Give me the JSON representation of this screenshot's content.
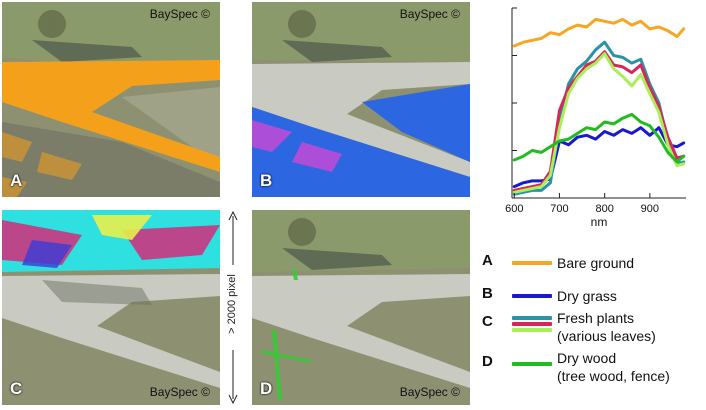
{
  "panels": [
    {
      "letter": "A",
      "watermark": "BaySpec ©",
      "overlay_color": "#f5a01a"
    },
    {
      "letter": "B",
      "watermark": "BaySpec ©",
      "overlay_color": "#2c66e0"
    },
    {
      "letter": "C",
      "watermark": "BaySpec ©",
      "overlay_color": "#2ee0e0"
    },
    {
      "letter": "D",
      "watermark": "BaySpec ©",
      "overlay_color": "#33cc33"
    }
  ],
  "scale_label": "> 2000 pixel",
  "chart_data": {
    "type": "line",
    "xlabel": "nm",
    "ylabel": "",
    "title": "",
    "xlim": [
      595,
      980
    ],
    "ylim": [
      0,
      100
    ],
    "xticks": [
      600,
      700,
      800,
      900
    ],
    "grid": false,
    "series": [
      {
        "id": "A",
        "color": "#f5a623",
        "width": 3,
        "x": [
          600,
          620,
          640,
          660,
          680,
          700,
          720,
          740,
          760,
          780,
          800,
          820,
          840,
          860,
          880,
          900,
          920,
          940,
          960,
          975
        ],
        "y": [
          80,
          82,
          83,
          84,
          87,
          86,
          89,
          91,
          90,
          94,
          93,
          92,
          94,
          91,
          93,
          89,
          90,
          88,
          85,
          89
        ]
      },
      {
        "id": "B",
        "color": "#1a1acc",
        "width": 3,
        "x": [
          600,
          620,
          640,
          660,
          680,
          700,
          720,
          740,
          760,
          780,
          800,
          820,
          840,
          860,
          880,
          900,
          920,
          940,
          960,
          975
        ],
        "y": [
          6,
          8,
          9,
          9,
          10,
          30,
          28,
          32,
          33,
          31,
          35,
          33,
          36,
          34,
          37,
          33,
          37,
          28,
          27,
          29
        ]
      },
      {
        "id": "C1",
        "color": "#2a93a8",
        "width": 3,
        "x": [
          600,
          620,
          640,
          660,
          680,
          700,
          720,
          740,
          760,
          780,
          800,
          820,
          840,
          860,
          880,
          900,
          920,
          940,
          960,
          975
        ],
        "y": [
          2,
          3,
          4,
          4,
          8,
          40,
          60,
          68,
          72,
          78,
          82,
          75,
          74,
          71,
          73,
          60,
          50,
          30,
          18,
          19
        ]
      },
      {
        "id": "C2",
        "color": "#d6275a",
        "width": 3,
        "x": [
          600,
          620,
          640,
          660,
          680,
          700,
          720,
          740,
          760,
          780,
          800,
          820,
          840,
          860,
          880,
          900,
          920,
          940,
          960,
          975
        ],
        "y": [
          4,
          5,
          6,
          7,
          14,
          46,
          58,
          64,
          70,
          72,
          77,
          70,
          69,
          66,
          70,
          58,
          48,
          32,
          21,
          22
        ]
      },
      {
        "id": "C3",
        "color": "#a8ef58",
        "width": 3,
        "x": [
          600,
          620,
          640,
          660,
          680,
          700,
          720,
          740,
          760,
          780,
          800,
          820,
          840,
          860,
          880,
          900,
          920,
          940,
          960,
          975
        ],
        "y": [
          3,
          4,
          5,
          6,
          12,
          37,
          55,
          63,
          68,
          71,
          76,
          68,
          64,
          59,
          65,
          55,
          45,
          28,
          17,
          18
        ]
      },
      {
        "id": "D",
        "color": "#22bb22",
        "width": 3,
        "x": [
          600,
          620,
          640,
          660,
          680,
          700,
          720,
          740,
          760,
          780,
          800,
          820,
          840,
          860,
          880,
          900,
          920,
          940,
          960,
          975
        ],
        "y": [
          20,
          22,
          25,
          24,
          27,
          30,
          31,
          34,
          37,
          36,
          40,
          39,
          42,
          44,
          40,
          38,
          32,
          24,
          19,
          22
        ]
      }
    ]
  },
  "legend": [
    {
      "letter": "A",
      "colors": [
        "#f5a623"
      ],
      "lines": [
        "Bare ground"
      ]
    },
    {
      "letter": "B",
      "colors": [
        "#1a1acc"
      ],
      "lines": [
        "Dry grass"
      ]
    },
    {
      "letter": "C",
      "colors": [
        "#2a93a8",
        "#d6275a",
        "#a8ef58"
      ],
      "lines": [
        "Fresh plants",
        "(various leaves)"
      ]
    },
    {
      "letter": "D",
      "colors": [
        "#22bb22"
      ],
      "lines": [
        "Dry wood",
        "(tree wood, fence)"
      ]
    }
  ]
}
